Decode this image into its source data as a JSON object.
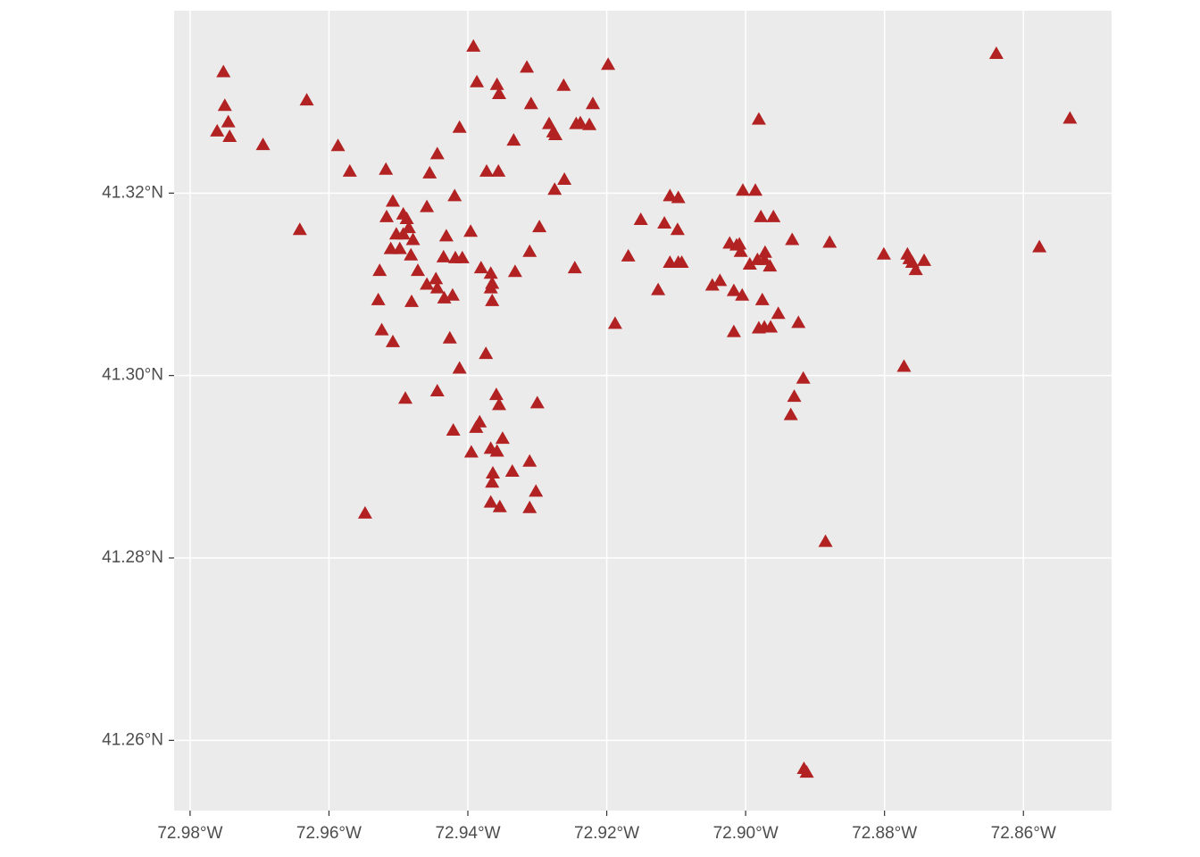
{
  "chart_data": {
    "type": "scatter",
    "marker": "triangle",
    "color": "#b22222",
    "grid": true,
    "xlim": [
      -72.9823,
      -72.8473
    ],
    "ylim": [
      41.2523,
      41.34
    ],
    "xticks": [
      {
        "value": -72.98,
        "label": "72.98°W"
      },
      {
        "value": -72.96,
        "label": "72.96°W"
      },
      {
        "value": -72.94,
        "label": "72.94°W"
      },
      {
        "value": -72.92,
        "label": "72.92°W"
      },
      {
        "value": -72.9,
        "label": "72.90°W"
      },
      {
        "value": -72.88,
        "label": "72.88°W"
      },
      {
        "value": -72.86,
        "label": "72.86°W"
      }
    ],
    "yticks": [
      {
        "value": 41.26,
        "label": "41.26°N"
      },
      {
        "value": 41.28,
        "label": "41.28°N"
      },
      {
        "value": 41.3,
        "label": "41.30°N"
      },
      {
        "value": 41.32,
        "label": "41.32°N"
      }
    ],
    "x": [
      -72.9752,
      -72.975,
      -72.9745,
      -72.9761,
      -72.9743,
      -72.9695,
      -72.9632,
      -72.9587,
      -72.9642,
      -72.9548,
      -72.9392,
      -72.9387,
      -72.9358,
      -72.9355,
      -72.9315,
      -72.9309,
      -72.9262,
      -72.922,
      -72.9198,
      -72.9334,
      -72.9283,
      -72.9277,
      -72.9274,
      -72.9244,
      -72.9238,
      -72.9225,
      -72.9412,
      -72.9444,
      -72.9455,
      -72.9373,
      -72.9356,
      -72.9261,
      -72.9275,
      -72.957,
      -72.9518,
      -72.9508,
      -72.9493,
      -72.9488,
      -72.9485,
      -72.9479,
      -72.9493,
      -72.9511,
      -72.9498,
      -72.9482,
      -72.9527,
      -72.9472,
      -72.9459,
      -72.9444,
      -72.9434,
      -72.9422,
      -72.9529,
      -72.9481,
      -72.9446,
      -72.9431,
      -72.9419,
      -72.9459,
      -72.9396,
      -72.9418,
      -72.9408,
      -72.9381,
      -72.9367,
      -72.9365,
      -72.9367,
      -72.9365,
      -72.9332,
      -72.9311,
      -72.9297,
      -72.9246,
      -72.9426,
      -72.9524,
      -72.9508,
      -72.9412,
      -72.9374,
      -72.949,
      -72.9444,
      -72.9421,
      -72.9395,
      -72.9388,
      -72.9383,
      -72.9359,
      -72.9355,
      -72.9367,
      -72.935,
      -72.9358,
      -72.9336,
      -72.9364,
      -72.9365,
      -72.9311,
      -72.9302,
      -72.9367,
      -72.9354,
      -72.9311,
      -72.93,
      -72.9188,
      -72.9169,
      -72.9151,
      -72.9126,
      -72.9117,
      -72.9109,
      -72.9097,
      -72.9098,
      -72.9109,
      -72.9097,
      -72.9092,
      -72.9048,
      -72.9037,
      -72.9023,
      -72.9013,
      -72.9009,
      -72.9007,
      -72.9017,
      -72.9005,
      -72.9017,
      -72.9004,
      -72.8986,
      -72.8981,
      -72.8978,
      -72.896,
      -72.8994,
      -72.8983,
      -72.8973,
      -72.8965,
      -72.8972,
      -72.8976,
      -72.8981,
      -72.8973,
      -72.8964,
      -72.8953,
      -72.8933,
      -72.8879,
      -72.8924,
      -72.8917,
      -72.893,
      -72.8935,
      -72.8885,
      -72.8916,
      -72.8912,
      -72.8801,
      -72.8767,
      -72.8764,
      -72.876,
      -72.8755,
      -72.8743,
      -72.8772,
      -72.8639,
      -72.8533,
      -72.8577,
      -72.9517,
      -72.9503,
      -72.9435
    ],
    "y": [
      41.3333,
      41.3296,
      41.3278,
      41.3268,
      41.3262,
      41.3253,
      41.3302,
      41.3252,
      41.316,
      41.2849,
      41.3361,
      41.3322,
      41.3319,
      41.3309,
      41.3338,
      41.3298,
      41.3318,
      41.3298,
      41.3341,
      41.3258,
      41.3276,
      41.3267,
      41.3264,
      41.3276,
      41.3277,
      41.3275,
      41.3272,
      41.3243,
      41.3222,
      41.3224,
      41.3224,
      41.3215,
      41.3204,
      41.3224,
      41.3226,
      41.3191,
      41.3177,
      41.3172,
      41.3162,
      41.3149,
      41.3155,
      41.3139,
      41.3139,
      41.3132,
      41.3115,
      41.3115,
      41.31,
      41.3096,
      41.3085,
      41.3088,
      41.3083,
      41.3081,
      41.3106,
      41.3153,
      41.3197,
      41.3185,
      41.3158,
      41.3129,
      41.3129,
      41.3118,
      41.3112,
      41.3101,
      41.3096,
      41.3082,
      41.3114,
      41.3136,
      41.3163,
      41.3118,
      41.3041,
      41.305,
      41.3037,
      41.3008,
      41.3024,
      41.2975,
      41.2983,
      41.294,
      41.2916,
      41.2943,
      41.2949,
      41.2979,
      41.2968,
      41.292,
      41.2931,
      41.2917,
      41.2895,
      41.2893,
      41.2883,
      41.2906,
      41.2873,
      41.2861,
      41.2856,
      41.2855,
      41.297,
      41.3057,
      41.3131,
      41.3171,
      41.3094,
      41.3167,
      41.3197,
      41.3195,
      41.316,
      41.3124,
      41.3124,
      41.3124,
      41.3099,
      41.3104,
      41.3145,
      41.3143,
      41.3144,
      41.3136,
      41.3093,
      41.3088,
      41.3048,
      41.3203,
      41.3203,
      41.3281,
      41.3174,
      41.3174,
      41.3122,
      41.3127,
      41.3127,
      41.312,
      41.3135,
      41.3083,
      41.3052,
      41.3053,
      41.3053,
      41.3068,
      41.3149,
      41.3146,
      41.3058,
      41.2997,
      41.2977,
      41.2957,
      41.2818,
      41.2569,
      41.2565,
      41.3133,
      41.3133,
      41.3128,
      41.3124,
      41.3116,
      41.3126,
      41.301,
      41.3353,
      41.3282,
      41.3141,
      41.3174,
      41.3155,
      41.313
    ]
  }
}
